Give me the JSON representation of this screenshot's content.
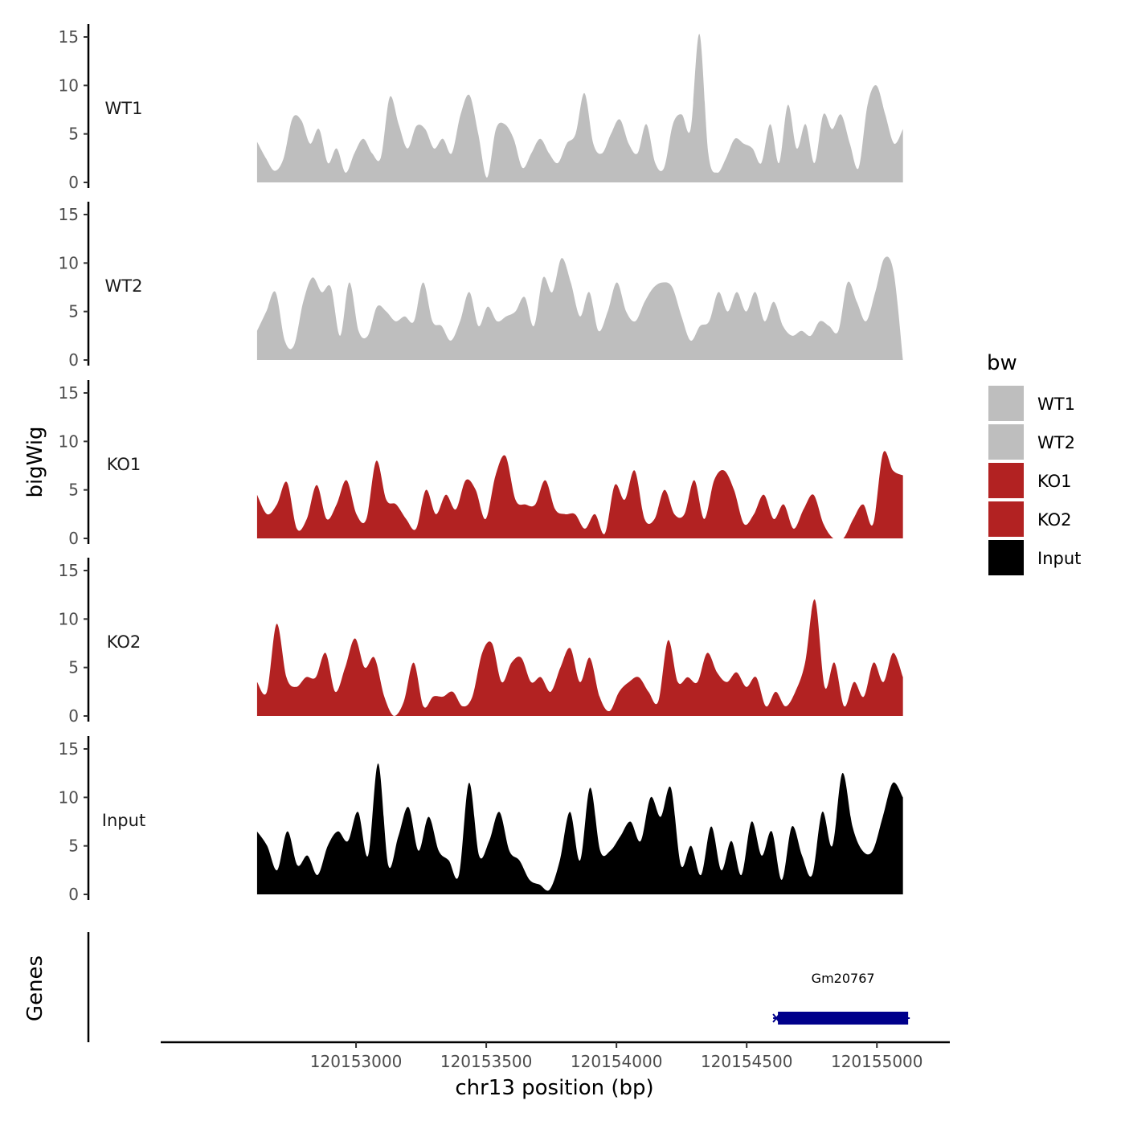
{
  "chart_data": {
    "type": "area",
    "ylabel": "bigWig",
    "genes_label": "Genes",
    "xlabel": "chr13 position (bp)",
    "xlim": [
      120152250,
      120155280
    ],
    "ylim": [
      0,
      15
    ],
    "y_ticks": [
      "0",
      "5",
      "10",
      "15"
    ],
    "x_ticks": [
      {
        "value": 120153000,
        "label": "120153000"
      },
      {
        "value": 120153500,
        "label": "120153500"
      },
      {
        "value": 120154000,
        "label": "120154000"
      },
      {
        "value": 120154500,
        "label": "120154500"
      },
      {
        "value": 120155000,
        "label": "120155000"
      }
    ],
    "x_start": 120152620,
    "x_end": 120155100,
    "legend": {
      "title": "bw",
      "position": "right"
    },
    "series": [
      {
        "name": "WT1",
        "color": "#bebebe",
        "values": [
          4.2,
          2.5,
          1.2,
          2.5,
          6.6,
          6.4,
          4.0,
          5.5,
          2.0,
          3.5,
          1.0,
          3.0,
          4.5,
          3.0,
          2.6,
          8.8,
          6.0,
          3.5,
          5.8,
          5.5,
          3.5,
          4.5,
          3.0,
          7.0,
          9.0,
          5.0,
          0.5,
          5.5,
          6.0,
          4.5,
          1.5,
          3.0,
          4.5,
          3.0,
          2.0,
          4.0,
          5.0,
          9.2,
          4.0,
          3.0,
          5.0,
          6.5,
          4.0,
          3.0,
          6.0,
          2.0,
          1.5,
          6.0,
          7.0,
          5.5,
          15.3,
          3.0,
          1.0,
          2.5,
          4.5,
          4.0,
          3.5,
          2.0,
          6.0,
          2.0,
          8.0,
          3.5,
          6.0,
          2.0,
          7.0,
          5.5,
          7.0,
          4.0,
          1.5,
          8.0,
          10.0,
          7.0,
          4.0,
          5.5
        ]
      },
      {
        "name": "WT2",
        "color": "#bebebe",
        "values": [
          3.0,
          5.0,
          7.0,
          2.0,
          1.5,
          6.0,
          8.5,
          7.0,
          7.5,
          2.5,
          8.0,
          3.0,
          2.5,
          5.5,
          5.0,
          4.0,
          4.5,
          4.0,
          8.0,
          4.0,
          3.5,
          2.0,
          4.0,
          7.0,
          3.5,
          5.5,
          4.0,
          4.5,
          5.0,
          6.5,
          3.5,
          8.5,
          7.0,
          10.5,
          8.0,
          4.5,
          7.0,
          3.0,
          5.0,
          8.0,
          5.0,
          4.0,
          6.0,
          7.5,
          8.0,
          7.5,
          4.5,
          2.0,
          3.5,
          4.0,
          7.0,
          5.0,
          7.0,
          5.0,
          7.0,
          4.0,
          6.0,
          3.5,
          2.5,
          3.0,
          2.5,
          4.0,
          3.5,
          3.0,
          8.0,
          6.0,
          4.0,
          7.0,
          10.5,
          9.0,
          0.0
        ]
      },
      {
        "name": "KO1",
        "color": "#b22222",
        "values": [
          4.5,
          2.5,
          3.5,
          5.8,
          1.0,
          2.0,
          5.5,
          2.0,
          3.5,
          6.0,
          2.5,
          2.0,
          8.0,
          4.0,
          3.5,
          2.0,
          1.0,
          5.0,
          2.5,
          4.5,
          3.0,
          6.0,
          5.0,
          2.0,
          6.5,
          8.5,
          4.0,
          3.5,
          3.5,
          6.0,
          3.0,
          2.5,
          2.5,
          1.0,
          2.5,
          0.5,
          5.5,
          4.0,
          7.0,
          2.0,
          2.0,
          5.0,
          2.5,
          2.5,
          6.0,
          2.0,
          6.0,
          7.0,
          5.0,
          1.5,
          2.5,
          4.5,
          2.0,
          3.5,
          1.0,
          3.0,
          4.5,
          1.5,
          0.0,
          0.0,
          2.0,
          3.5,
          1.5,
          8.8,
          7.0,
          6.5
        ]
      },
      {
        "name": "KO2",
        "color": "#b22222",
        "values": [
          3.5,
          2.5,
          9.5,
          4.0,
          3.0,
          4.0,
          4.0,
          6.5,
          2.5,
          5.0,
          8.0,
          5.0,
          6.0,
          2.0,
          0.0,
          1.5,
          5.5,
          1.0,
          2.0,
          2.0,
          2.5,
          1.0,
          2.0,
          6.5,
          7.5,
          3.5,
          5.5,
          6.0,
          3.5,
          4.0,
          2.5,
          5.0,
          7.0,
          3.5,
          6.0,
          2.0,
          0.5,
          2.5,
          3.5,
          4.0,
          2.5,
          1.5,
          7.8,
          3.5,
          4.0,
          3.5,
          6.5,
          4.5,
          3.5,
          4.5,
          3.0,
          4.0,
          1.0,
          2.5,
          1.0,
          2.5,
          5.5,
          12.0,
          3.0,
          5.5,
          1.0,
          3.5,
          2.0,
          5.5,
          3.5,
          6.5,
          4.0
        ]
      },
      {
        "name": "Input",
        "color": "#000000",
        "values": [
          6.5,
          5.0,
          2.5,
          6.5,
          3.0,
          4.0,
          2.0,
          5.0,
          6.5,
          5.5,
          8.5,
          4.0,
          13.5,
          3.0,
          6.0,
          9.0,
          4.5,
          8.0,
          4.5,
          3.5,
          2.0,
          11.5,
          4.0,
          5.5,
          8.5,
          4.5,
          3.5,
          1.5,
          1.0,
          0.5,
          3.5,
          8.5,
          3.5,
          11.0,
          4.5,
          4.5,
          6.0,
          7.5,
          5.5,
          10.0,
          8.0,
          11.0,
          3.0,
          5.0,
          2.0,
          7.0,
          2.5,
          5.5,
          2.0,
          7.5,
          4.0,
          6.5,
          1.5,
          7.0,
          4.0,
          2.0,
          8.5,
          5.0,
          12.5,
          7.0,
          4.5,
          4.5,
          8.0,
          11.5,
          10.0
        ]
      }
    ],
    "genes": [
      {
        "name": "Gm20767",
        "start": 120154620,
        "end": 120155120,
        "strand": "-",
        "color": "#00008b"
      }
    ]
  }
}
